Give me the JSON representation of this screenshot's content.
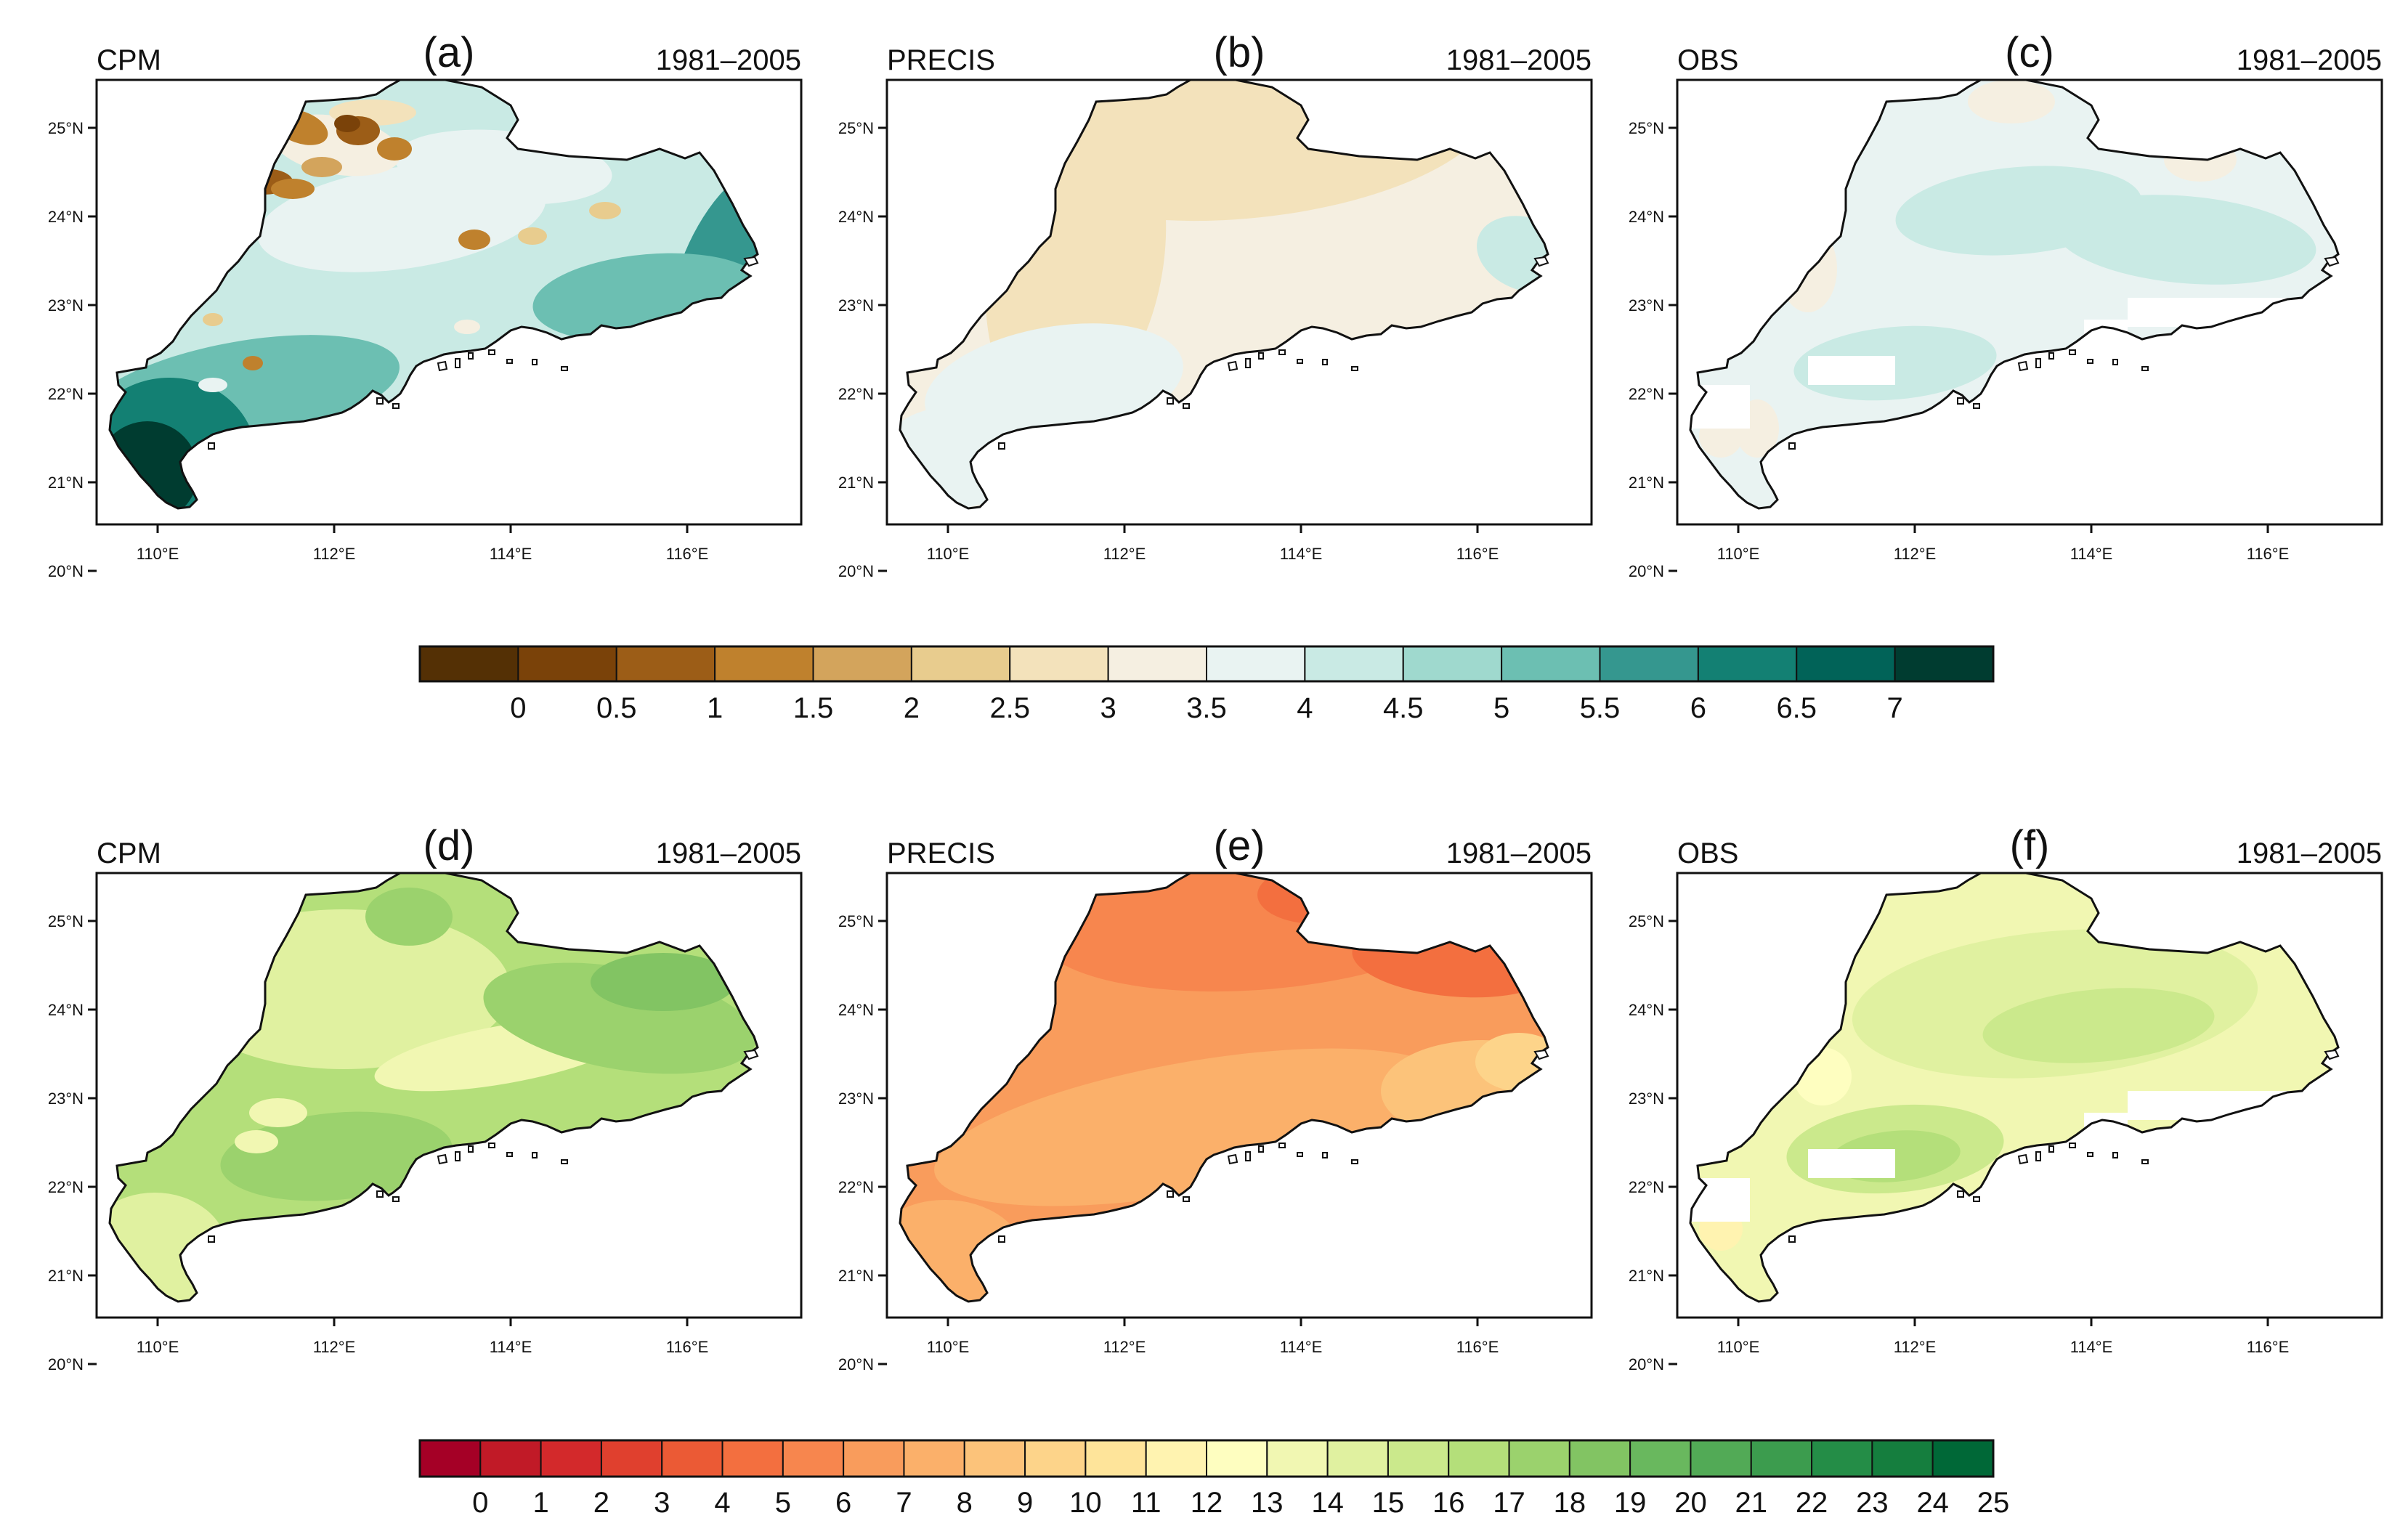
{
  "figure": {
    "panels": [
      {
        "letter": "(a)",
        "source": "CPM",
        "period": "1981–2005",
        "variable_row": 0,
        "pattern": "cpm_a"
      },
      {
        "letter": "(b)",
        "source": "PRECIS",
        "period": "1981–2005",
        "variable_row": 0,
        "pattern": "precis_b"
      },
      {
        "letter": "(c)",
        "source": "OBS",
        "period": "1981–2005",
        "variable_row": 0,
        "pattern": "obs_c"
      },
      {
        "letter": "(d)",
        "source": "CPM",
        "period": "1981–2005",
        "variable_row": 1,
        "pattern": "cpm_d"
      },
      {
        "letter": "(e)",
        "source": "PRECIS",
        "period": "1981–2005",
        "variable_row": 1,
        "pattern": "precis_e"
      },
      {
        "letter": "(f)",
        "source": "OBS",
        "period": "1981–2005",
        "variable_row": 1,
        "pattern": "obs_f"
      }
    ],
    "lat_ticks": [
      "25°N",
      "24°N",
      "23°N",
      "22°N",
      "21°N",
      "20°N"
    ],
    "lon_ticks": [
      "110°E",
      "112°E",
      "114°E",
      "116°E"
    ],
    "colorbars": [
      {
        "labels": [
          "0",
          "0.5",
          "1",
          "1.5",
          "2",
          "2.5",
          "3",
          "3.5",
          "4",
          "4.5",
          "5",
          "5.5",
          "6",
          "6.5",
          "7"
        ],
        "colors": [
          "#543005",
          "#7a4209",
          "#9c5d17",
          "#bf812d",
          "#d3a45c",
          "#e8cc8e",
          "#f3e2bb",
          "#f5efe1",
          "#e9f3f2",
          "#c9eae4",
          "#9fd9ce",
          "#6cbfb2",
          "#35978f",
          "#138073",
          "#016358",
          "#003c30"
        ]
      },
      {
        "labels": [
          "0",
          "1",
          "2",
          "3",
          "4",
          "5",
          "6",
          "7",
          "8",
          "9",
          "10",
          "11",
          "12",
          "13",
          "14",
          "15",
          "16",
          "17",
          "18",
          "19",
          "20",
          "21",
          "22",
          "23",
          "24",
          "25"
        ],
        "colors": [
          "#a50026",
          "#c11a27",
          "#d3292b",
          "#e0402e",
          "#eb5a35",
          "#f36f3f",
          "#f7864e",
          "#f99c5c",
          "#fbb06a",
          "#fcc37a",
          "#fdd48a",
          "#fee49a",
          "#fff3b0",
          "#fefec0",
          "#f1f7b2",
          "#e0f1a0",
          "#cbe98c",
          "#b4df7a",
          "#9bd26d",
          "#82c463",
          "#69b85e",
          "#52aa56",
          "#3c9c4e",
          "#248d47",
          "#157e3e",
          "#006837"
        ]
      }
    ]
  }
}
